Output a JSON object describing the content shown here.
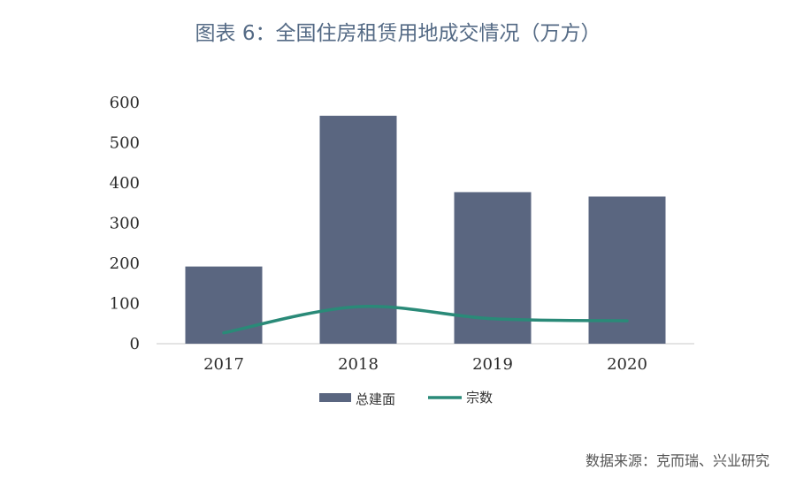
{
  "title": "图表 6：全国住房租赁用地成交情况（万方）",
  "source": "数据来源：克而瑞、兴业研究",
  "colors": {
    "bar": "#5a6680",
    "line": "#2a8a78",
    "axis": "#c8c8c8",
    "title": "#546a85"
  },
  "chart_data": {
    "type": "bar",
    "categories": [
      "2017",
      "2018",
      "2019",
      "2020"
    ],
    "series": [
      {
        "name": "总建面",
        "type": "bar",
        "values": [
          192,
          567,
          377,
          366
        ]
      },
      {
        "name": "宗数",
        "type": "line",
        "values": [
          27,
          92,
          62,
          57
        ]
      }
    ],
    "ylim": [
      0,
      600
    ],
    "yticks": [
      0,
      100,
      200,
      300,
      400,
      500,
      600
    ],
    "legend": "bottom-center",
    "grid": false,
    "xlabel": "",
    "ylabel": ""
  }
}
